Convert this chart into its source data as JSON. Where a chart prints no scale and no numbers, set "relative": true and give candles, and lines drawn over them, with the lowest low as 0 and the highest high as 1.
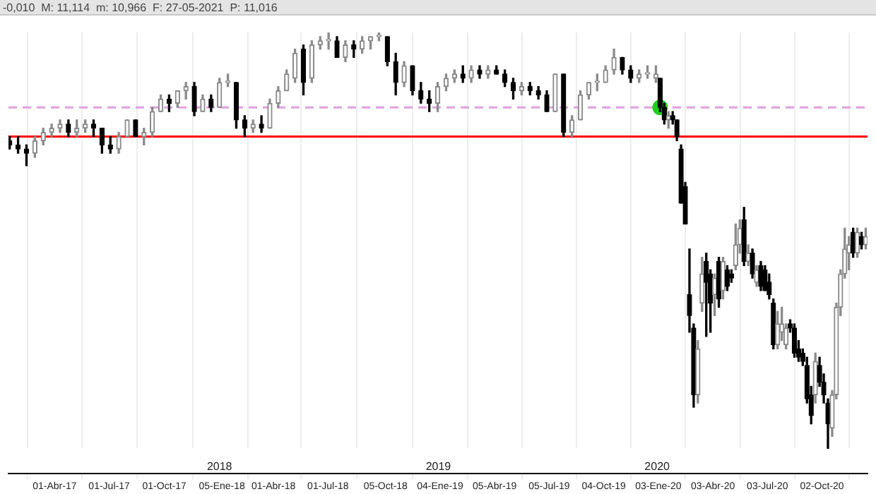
{
  "chart_data": {
    "type": "candlestick",
    "relative": true,
    "tick_labels": "x",
    "grid": "x",
    "legend": false,
    "annotations": [
      "-0,010  M: 11,114  m: 10,966  F: 27-05-2021  P: 11,016"
    ],
    "xlim": [
      "2017-01-14",
      "2020-12-17"
    ],
    "xticks": [
      {
        "value": "2017-04-01",
        "label": "01-Abr-17"
      },
      {
        "value": "2017-07-01",
        "label": "01-Jul-17"
      },
      {
        "value": "2017-10-01",
        "label": "01-Oct-17"
      },
      {
        "value": "2018-01-05",
        "label": "05-Ene-18"
      },
      {
        "value": "2018-04-01",
        "label": "01-Abr-18"
      },
      {
        "value": "2018-07-01",
        "label": "01-Jul-18"
      },
      {
        "value": "2018-10-05",
        "label": "05-Oct-18"
      },
      {
        "value": "2019-01-04",
        "label": "04-Ene-19"
      },
      {
        "value": "2019-04-05",
        "label": "05-Abr-19"
      },
      {
        "value": "2019-07-05",
        "label": "05-Jul-19"
      },
      {
        "value": "2019-10-04",
        "label": "04-Oct-19"
      },
      {
        "value": "2020-01-03",
        "label": "03-Ene-20"
      },
      {
        "value": "2020-04-03",
        "label": "03-Abr-20"
      },
      {
        "value": "2020-07-03",
        "label": "03-Jul-20"
      },
      {
        "value": "2020-10-02",
        "label": "02-Oct-20"
      }
    ],
    "x2lim": [
      "2017-01-14",
      "2020-12-17"
    ],
    "x2ticks": [
      {
        "value": "2018-01-01",
        "label": "2018"
      },
      {
        "value": "2019-01-01",
        "label": "2019"
      },
      {
        "value": "2020-01-01",
        "label": "2020"
      }
    ],
    "ref_lines": [
      {
        "axis": "y",
        "value": 0.75,
        "color": "#ff0000",
        "line_style": "solid"
      },
      {
        "axis": "y",
        "value": 0.82,
        "color": "#e0a0e0",
        "line_style": "dashed"
      }
    ],
    "x": [
      "2017-01-16",
      "2017-01-30",
      "2017-02-13",
      "2017-02-27",
      "2017-03-13",
      "2017-03-27",
      "2017-04-10",
      "2017-04-24",
      "2017-05-08",
      "2017-05-22",
      "2017-06-05",
      "2017-06-19",
      "2017-07-03",
      "2017-07-17",
      "2017-07-31",
      "2017-08-14",
      "2017-08-28",
      "2017-09-11",
      "2017-09-25",
      "2017-10-09",
      "2017-10-23",
      "2017-11-06",
      "2017-11-20",
      "2017-12-04",
      "2017-12-18",
      "2018-01-01",
      "2018-01-15",
      "2018-01-29",
      "2018-02-12",
      "2018-02-26",
      "2018-03-12",
      "2018-03-26",
      "2018-04-09",
      "2018-04-23",
      "2018-05-07",
      "2018-05-21",
      "2018-06-04",
      "2018-06-18",
      "2018-07-02",
      "2018-07-16",
      "2018-07-30",
      "2018-08-13",
      "2018-08-27",
      "2018-09-10",
      "2018-09-24",
      "2018-10-08",
      "2018-10-22",
      "2018-11-05",
      "2018-11-19",
      "2018-12-03",
      "2018-12-17",
      "2018-12-31",
      "2019-01-14",
      "2019-01-28",
      "2019-02-11",
      "2019-02-25",
      "2019-03-11",
      "2019-03-25",
      "2019-04-08",
      "2019-04-22",
      "2019-05-06",
      "2019-05-20",
      "2019-06-03",
      "2019-06-17",
      "2019-07-01",
      "2019-07-15",
      "2019-07-29",
      "2019-08-12",
      "2019-08-26",
      "2019-09-09",
      "2019-09-23",
      "2019-10-07",
      "2019-10-21",
      "2019-11-04",
      "2019-11-18",
      "2019-12-02",
      "2019-12-16",
      "2019-12-30",
      "2020-01-06",
      "2020-01-13",
      "2020-01-20",
      "2020-01-27",
      "2020-02-03",
      "2020-02-10",
      "2020-02-17",
      "2020-02-24",
      "2020-03-02",
      "2020-03-09",
      "2020-03-16",
      "2020-03-23",
      "2020-03-30",
      "2020-04-06",
      "2020-04-13",
      "2020-04-20",
      "2020-04-27",
      "2020-05-04",
      "2020-05-11",
      "2020-05-18",
      "2020-05-25",
      "2020-06-01",
      "2020-06-08",
      "2020-06-15",
      "2020-06-22",
      "2020-06-29",
      "2020-07-06",
      "2020-07-13",
      "2020-07-20",
      "2020-07-27",
      "2020-08-03",
      "2020-08-10",
      "2020-08-17",
      "2020-08-24",
      "2020-08-31",
      "2020-09-07",
      "2020-09-14",
      "2020-09-21",
      "2020-09-28",
      "2020-10-05",
      "2020-10-12",
      "2020-10-19",
      "2020-10-26",
      "2020-11-02",
      "2020-11-09",
      "2020-11-16",
      "2020-11-23",
      "2020-11-30",
      "2020-12-07",
      "2020-12-14"
    ],
    "ohlc": [
      [
        0.74,
        0.75,
        0.72,
        0.73
      ],
      [
        0.73,
        0.75,
        0.71,
        0.72
      ],
      [
        0.72,
        0.73,
        0.68,
        0.71
      ],
      [
        0.71,
        0.75,
        0.7,
        0.74
      ],
      [
        0.74,
        0.77,
        0.73,
        0.76
      ],
      [
        0.76,
        0.78,
        0.75,
        0.77
      ],
      [
        0.77,
        0.79,
        0.76,
        0.78
      ],
      [
        0.78,
        0.79,
        0.75,
        0.76
      ],
      [
        0.76,
        0.79,
        0.75,
        0.77
      ],
      [
        0.77,
        0.79,
        0.76,
        0.78
      ],
      [
        0.78,
        0.79,
        0.75,
        0.77
      ],
      [
        0.77,
        0.77,
        0.71,
        0.73
      ],
      [
        0.73,
        0.75,
        0.71,
        0.72
      ],
      [
        0.72,
        0.76,
        0.71,
        0.75
      ],
      [
        0.75,
        0.79,
        0.75,
        0.79
      ],
      [
        0.79,
        0.79,
        0.75,
        0.75
      ],
      [
        0.75,
        0.77,
        0.73,
        0.76
      ],
      [
        0.76,
        0.82,
        0.75,
        0.81
      ],
      [
        0.81,
        0.85,
        0.81,
        0.84
      ],
      [
        0.84,
        0.85,
        0.81,
        0.83
      ],
      [
        0.83,
        0.86,
        0.82,
        0.86
      ],
      [
        0.86,
        0.88,
        0.84,
        0.87
      ],
      [
        0.87,
        0.88,
        0.8,
        0.81
      ],
      [
        0.81,
        0.85,
        0.81,
        0.84
      ],
      [
        0.84,
        0.85,
        0.81,
        0.82
      ],
      [
        0.82,
        0.89,
        0.82,
        0.88
      ],
      [
        0.88,
        0.9,
        0.87,
        0.88
      ],
      [
        0.88,
        0.88,
        0.77,
        0.79
      ],
      [
        0.79,
        0.8,
        0.75,
        0.77
      ],
      [
        0.77,
        0.79,
        0.76,
        0.78
      ],
      [
        0.78,
        0.8,
        0.76,
        0.77
      ],
      [
        0.77,
        0.84,
        0.77,
        0.83
      ],
      [
        0.83,
        0.87,
        0.82,
        0.86
      ],
      [
        0.86,
        0.91,
        0.86,
        0.9
      ],
      [
        0.89,
        0.96,
        0.88,
        0.95
      ],
      [
        0.96,
        0.97,
        0.85,
        0.88
      ],
      [
        0.89,
        0.98,
        0.88,
        0.97
      ],
      [
        0.97,
        0.99,
        0.96,
        0.98
      ],
      [
        0.98,
        1,
        0.96,
        0.98
      ],
      [
        0.98,
        0.99,
        0.94,
        0.94
      ],
      [
        0.94,
        0.98,
        0.93,
        0.97
      ],
      [
        0.97,
        0.98,
        0.94,
        0.96
      ],
      [
        0.96,
        0.99,
        0.95,
        0.98
      ],
      [
        0.98,
        0.99,
        0.96,
        0.99
      ],
      [
        0.99,
        1,
        0.98,
        0.99
      ],
      [
        0.99,
        0.99,
        0.92,
        0.93
      ],
      [
        0.93,
        0.95,
        0.85,
        0.88
      ],
      [
        0.88,
        0.93,
        0.87,
        0.92
      ],
      [
        0.92,
        0.92,
        0.85,
        0.86
      ],
      [
        0.86,
        0.88,
        0.83,
        0.84
      ],
      [
        0.84,
        0.86,
        0.81,
        0.83
      ],
      [
        0.83,
        0.88,
        0.81,
        0.87
      ],
      [
        0.87,
        0.9,
        0.86,
        0.89
      ],
      [
        0.89,
        0.91,
        0.88,
        0.9
      ],
      [
        0.9,
        0.92,
        0.88,
        0.89
      ],
      [
        0.89,
        0.92,
        0.88,
        0.91
      ],
      [
        0.91,
        0.92,
        0.89,
        0.9
      ],
      [
        0.9,
        0.92,
        0.89,
        0.91
      ],
      [
        0.91,
        0.92,
        0.9,
        0.9
      ],
      [
        0.9,
        0.91,
        0.87,
        0.88
      ],
      [
        0.88,
        0.89,
        0.84,
        0.86
      ],
      [
        0.86,
        0.88,
        0.85,
        0.87
      ],
      [
        0.87,
        0.88,
        0.85,
        0.86
      ],
      [
        0.86,
        0.87,
        0.84,
        0.85
      ],
      [
        0.85,
        0.86,
        0.81,
        0.81
      ],
      [
        0.81,
        0.9,
        0.81,
        0.9
      ],
      [
        0.9,
        0.9,
        0.75,
        0.76
      ],
      [
        0.76,
        0.8,
        0.75,
        0.79
      ],
      [
        0.79,
        0.86,
        0.79,
        0.85
      ],
      [
        0.85,
        0.88,
        0.84,
        0.88
      ],
      [
        0.88,
        0.9,
        0.86,
        0.88
      ],
      [
        0.88,
        0.92,
        0.88,
        0.91
      ],
      [
        0.91,
        0.96,
        0.9,
        0.94
      ],
      [
        0.94,
        0.94,
        0.9,
        0.91
      ],
      [
        0.91,
        0.92,
        0.88,
        0.89
      ],
      [
        0.89,
        0.91,
        0.88,
        0.9
      ],
      [
        0.9,
        0.92,
        0.89,
        0.9
      ],
      [
        0.89,
        0.92,
        0.88,
        0.9
      ],
      [
        0.89,
        0.89,
        0.81,
        0.82
      ],
      [
        0.82,
        0.83,
        0.78,
        0.79
      ],
      [
        0.79,
        0.81,
        0.77,
        0.8
      ],
      [
        0.8,
        0.81,
        0.78,
        0.79
      ],
      [
        0.79,
        0.79,
        0.74,
        0.75
      ],
      [
        0.72,
        0.73,
        0.59,
        0.59
      ],
      [
        0.63,
        0.64,
        0.54,
        0.54
      ],
      [
        0.37,
        0.48,
        0.28,
        0.32
      ],
      [
        0.29,
        0.3,
        0.1,
        0.13
      ],
      [
        0.13,
        0.26,
        0.11,
        0.24
      ],
      [
        0.35,
        0.46,
        0.33,
        0.42
      ],
      [
        0.45,
        0.47,
        0.27,
        0.4
      ],
      [
        0.42,
        0.43,
        0.28,
        0.35
      ],
      [
        0.37,
        0.42,
        0.32,
        0.41
      ],
      [
        0.45,
        0.46,
        0.34,
        0.36
      ],
      [
        0.38,
        0.46,
        0.36,
        0.45
      ],
      [
        0.43,
        0.44,
        0.38,
        0.39
      ],
      [
        0.42,
        0.43,
        0.4,
        0.41
      ],
      [
        0.44,
        0.54,
        0.43,
        0.49
      ],
      [
        0.49,
        0.55,
        0.47,
        0.53
      ],
      [
        0.55,
        0.58,
        0.44,
        0.45
      ],
      [
        0.45,
        0.49,
        0.44,
        0.47
      ],
      [
        0.47,
        0.48,
        0.41,
        0.42
      ],
      [
        0.4,
        0.44,
        0.39,
        0.43
      ],
      [
        0.44,
        0.45,
        0.38,
        0.39
      ],
      [
        0.43,
        0.44,
        0.38,
        0.38
      ],
      [
        0.4,
        0.42,
        0.36,
        0.37
      ],
      [
        0.35,
        0.36,
        0.24,
        0.25
      ],
      [
        0.25,
        0.33,
        0.24,
        0.3
      ],
      [
        0.28,
        0.34,
        0.26,
        0.3
      ],
      [
        0.25,
        0.3,
        0.24,
        0.29
      ],
      [
        0.3,
        0.31,
        0.28,
        0.29
      ],
      [
        0.29,
        0.3,
        0.22,
        0.23
      ],
      [
        0.24,
        0.26,
        0.21,
        0.22
      ],
      [
        0.23,
        0.24,
        0.2,
        0.21
      ],
      [
        0.2,
        0.22,
        0.11,
        0.12
      ],
      [
        0.13,
        0.15,
        0.06,
        0.08
      ],
      [
        0.13,
        0.23,
        0.11,
        0.21
      ],
      [
        0.2,
        0.22,
        0.15,
        0.16
      ],
      [
        0.16,
        0.18,
        0.11,
        0.13
      ],
      [
        0.11,
        0.12,
        0,
        0.06
      ],
      [
        0.05,
        0.14,
        0.03,
        0.13
      ],
      [
        0.13,
        0.35,
        0.12,
        0.34
      ],
      [
        0.34,
        0.43,
        0.32,
        0.42
      ],
      [
        0.42,
        0.53,
        0.41,
        0.48
      ],
      [
        0.47,
        0.51,
        0.43,
        0.49
      ],
      [
        0.52,
        0.53,
        0.46,
        0.47
      ],
      [
        0.47,
        0.53,
        0.46,
        0.52
      ],
      [
        0.51,
        0.52,
        0.48,
        0.49
      ],
      [
        0.49,
        0.53,
        0.48,
        0.51
      ]
    ],
    "series": [
      {
        "type": "scatter",
        "x": [
          "2020-01-06"
        ],
        "values": [
          0.82
        ],
        "color": "#22cc22",
        "marker": "circle"
      }
    ]
  }
}
